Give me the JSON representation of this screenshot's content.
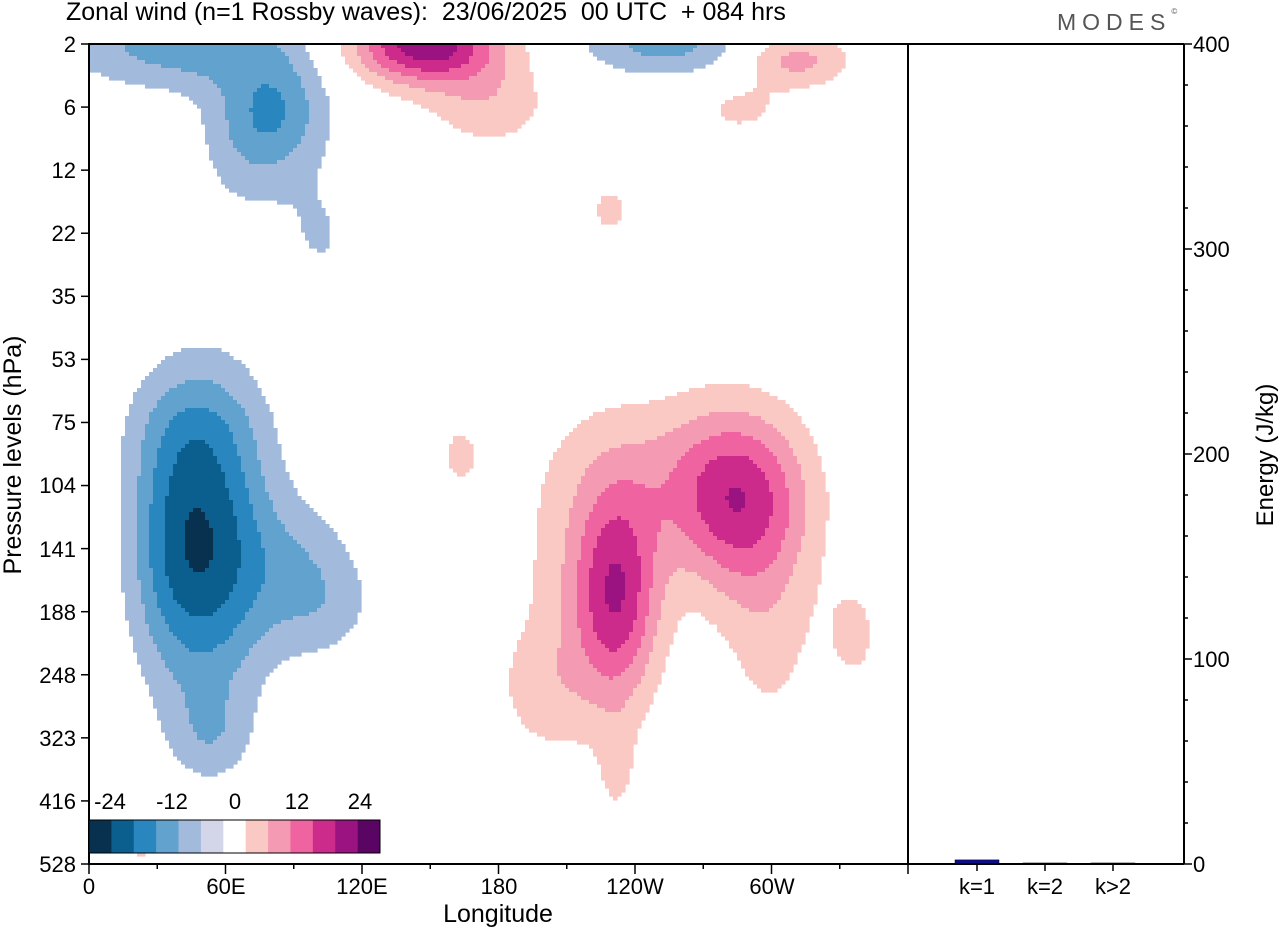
{
  "header": {
    "title": "Zonal wind (n=1 Rossby waves):  23/06/2025  00 UTC  + 084 hrs",
    "brand": "MODES",
    "brand_mark": "©"
  },
  "chart_data": [
    {
      "type": "heatmap",
      "title": "Zonal wind (n=1 Rossby waves):  23/06/2025  00 UTC  + 084 hrs",
      "xlabel": "Longitude",
      "ylabel": "Pressure levels (hPa)",
      "x_ticks": [
        "0",
        "60E",
        "120E",
        "180",
        "120W",
        "60W"
      ],
      "y_ticks": [
        "2",
        "6",
        "12",
        "22",
        "35",
        "53",
        "75",
        "104",
        "141",
        "188",
        "248",
        "323",
        "416",
        "528"
      ],
      "colorbar": {
        "labels": [
          "-24",
          "-12",
          "0",
          "12",
          "24"
        ],
        "levels": [
          -30,
          -25,
          -20,
          -15,
          -10,
          -5,
          0,
          5,
          10,
          15,
          20,
          25,
          30
        ],
        "colors": [
          "#08304f",
          "#0b5f8f",
          "#2a86bf",
          "#62a2cf",
          "#a2badb",
          "#d3d5e8",
          "#ffffff",
          "#fac9c4",
          "#f59ab3",
          "#ef64a0",
          "#cc2b8b",
          "#9a1380",
          "#5a0563"
        ]
      },
      "features": [
        {
          "sign": "negative",
          "peak": -22,
          "lon_center": 50,
          "level": "141"
        },
        {
          "sign": "negative",
          "peak": -12,
          "lon_center": 20,
          "level": "2"
        },
        {
          "sign": "negative",
          "peak": -12,
          "lon_center": 285,
          "level": "2"
        },
        {
          "sign": "positive",
          "peak": 27,
          "lon_center": 170,
          "level": "2"
        },
        {
          "sign": "positive",
          "peak": 12,
          "lon_center": 315,
          "level": "2"
        },
        {
          "sign": "positive",
          "peak": 18,
          "lon_center": 245,
          "level": "141"
        },
        {
          "sign": "positive",
          "peak": 18,
          "lon_center": 286,
          "level": "104"
        },
        {
          "sign": "positive",
          "peak": 6,
          "lon_center": 335,
          "level": "188"
        }
      ]
    },
    {
      "type": "bar",
      "ylabel": "Energy (J/kg)",
      "ylim": [
        0,
        400
      ],
      "y_ticks": [
        "0",
        "100",
        "200",
        "300",
        "400"
      ],
      "categories": [
        "k=1",
        "k=2",
        "k>2"
      ],
      "values": [
        2,
        0.5,
        0.5
      ],
      "color": "#0d0d8c"
    }
  ]
}
